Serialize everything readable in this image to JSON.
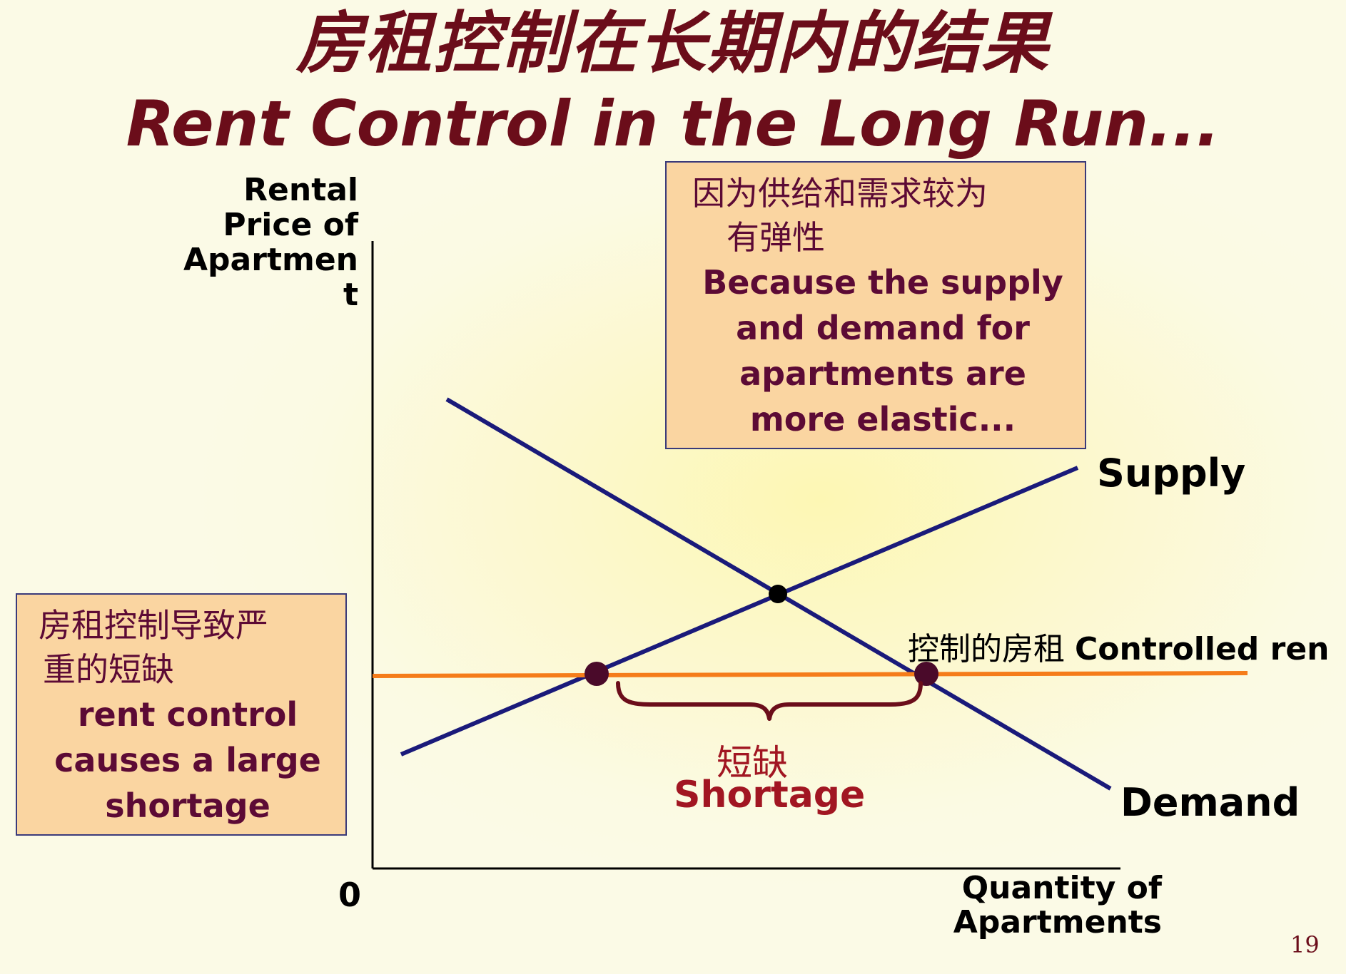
{
  "title": {
    "zh": "房租控制在长期内的结果",
    "en": "Rent Control in the Long Run..."
  },
  "axes": {
    "y_label_lines": [
      "Rental",
      "Price of",
      "Apartmen",
      "t"
    ],
    "x_label_lines": [
      "Quantity of",
      "Apartments"
    ],
    "origin": "0"
  },
  "curves": {
    "supply_label": "Supply",
    "demand_label": "Demand",
    "controlled_rent_zh": "控制的房租",
    "controlled_rent_en": "Controlled ren"
  },
  "elastic_box": {
    "zh_line1": "因为供给和需求较为",
    "zh_line2": "有弹性",
    "en_lines": [
      "Because the supply",
      "and demand for",
      "apartments are",
      "more elastic..."
    ]
  },
  "rent_box": {
    "zh_line1": "房租控制导致严",
    "zh_line2": "重的短缺",
    "en_lines": [
      "rent control",
      "causes a large",
      "shortage"
    ]
  },
  "shortage": {
    "zh": "短缺",
    "en": "Shortage"
  },
  "page_number": "19",
  "colors": {
    "title": "#6b0d1a",
    "curve": "#1a1a7a",
    "controlled_rent_line": "#f57c1a",
    "point": "#4a0a2a",
    "box_fill": "#fad5a1",
    "shortage_text": "#a11622"
  }
}
